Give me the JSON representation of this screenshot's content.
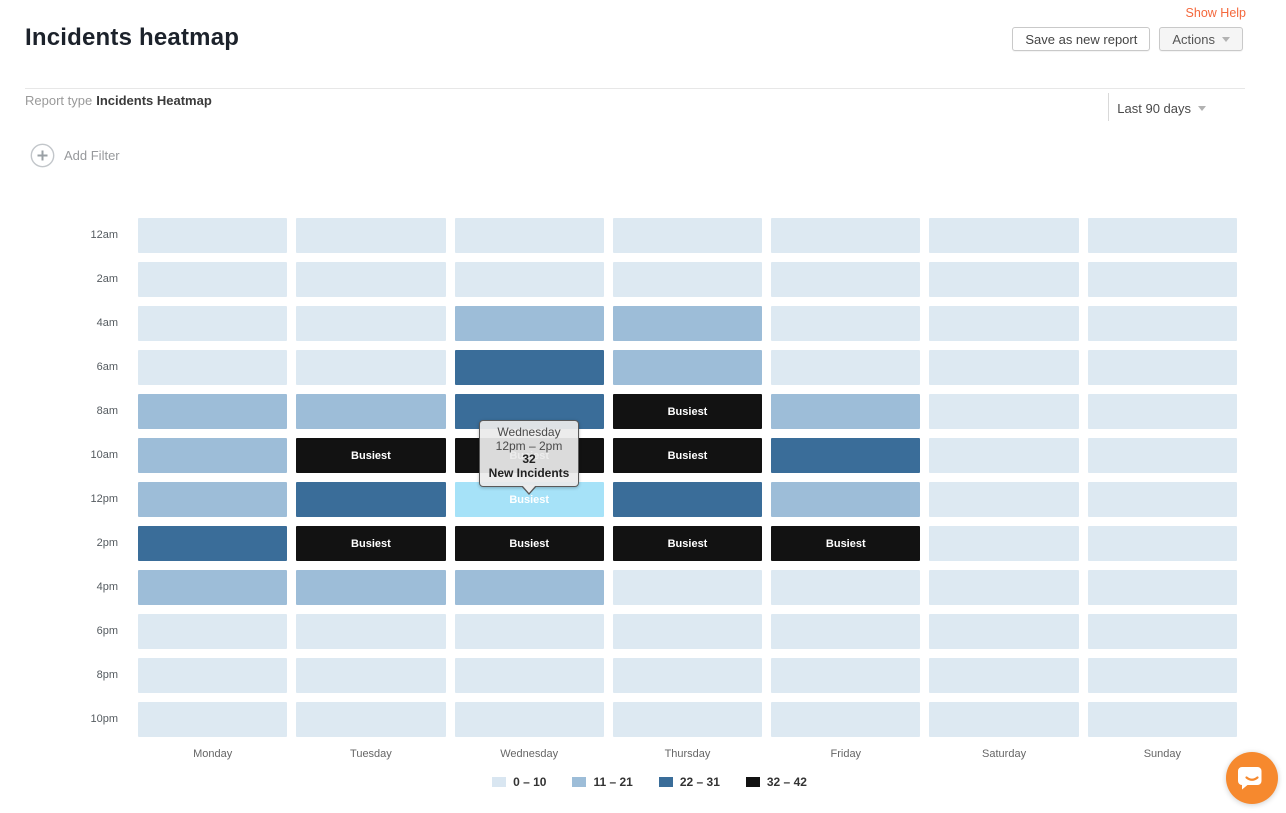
{
  "header": {
    "title": "Incidents heatmap",
    "show_help": "Show Help",
    "save_button": "Save as new report",
    "actions_button": "Actions"
  },
  "report_bar": {
    "type_label": "Report type",
    "type_value": "Incidents Heatmap",
    "date_range": "Last 90 days"
  },
  "filters": {
    "add_filter_label": "Add Filter"
  },
  "tooltip": {
    "day": "Wednesday",
    "time_range": "12pm – 2pm",
    "value": "32",
    "label": "New Incidents"
  },
  "heatmap": {
    "busiest_label": "Busiest",
    "times": [
      "12am",
      "2am",
      "4am",
      "6am",
      "8am",
      "10am",
      "12pm",
      "2pm",
      "4pm",
      "6pm",
      "8pm",
      "10pm"
    ],
    "days": [
      "Monday",
      "Tuesday",
      "Wednesday",
      "Thursday",
      "Friday",
      "Saturday",
      "Sunday"
    ],
    "levels": [
      [
        0,
        0,
        0,
        0,
        0,
        0,
        0
      ],
      [
        0,
        0,
        0,
        0,
        0,
        0,
        0
      ],
      [
        0,
        0,
        1,
        1,
        0,
        0,
        0
      ],
      [
        0,
        0,
        2,
        1,
        0,
        0,
        0
      ],
      [
        1,
        1,
        2,
        3,
        1,
        0,
        0
      ],
      [
        1,
        3,
        3,
        3,
        2,
        0,
        0
      ],
      [
        1,
        2,
        3,
        2,
        1,
        0,
        0
      ],
      [
        2,
        3,
        3,
        3,
        3,
        0,
        0
      ],
      [
        1,
        1,
        1,
        0,
        0,
        0,
        0
      ],
      [
        0,
        0,
        0,
        0,
        0,
        0,
        0
      ],
      [
        0,
        0,
        0,
        0,
        0,
        0,
        0
      ],
      [
        0,
        0,
        0,
        0,
        0,
        0,
        0
      ]
    ],
    "hover_cell": {
      "row": 6,
      "col": 2
    },
    "colors": {
      "level_0": "#dde9f2",
      "level_1": "#9dbdd8",
      "level_2": "#3a6d99",
      "level_3": "#121212",
      "hover": "#a6e2f8"
    }
  },
  "legend": {
    "items": [
      {
        "label": "0 – 10",
        "color": "#d9e6f1"
      },
      {
        "label": "11 – 21",
        "color": "#9dbdd8"
      },
      {
        "label": "22 – 31",
        "color": "#3a6d99"
      },
      {
        "label": "32 – 42",
        "color": "#121212"
      }
    ]
  },
  "colors": {
    "help_link": "#f4683c",
    "chat_bubble": "#f6892e"
  },
  "chart_data": {
    "type": "heatmap",
    "title": "Incidents heatmap",
    "x": [
      "Monday",
      "Tuesday",
      "Wednesday",
      "Thursday",
      "Friday",
      "Saturday",
      "Sunday"
    ],
    "y": [
      "12am",
      "2am",
      "4am",
      "6am",
      "8am",
      "10am",
      "12pm",
      "2pm",
      "4pm",
      "6pm",
      "8pm",
      "10pm"
    ],
    "buckets": [
      "0 – 10",
      "11 – 21",
      "22 – 31",
      "32 – 42"
    ],
    "bucket_colors": [
      "#dde9f2",
      "#9dbdd8",
      "#3a6d99",
      "#121212"
    ],
    "level_matrix_rows_by_time": [
      [
        0,
        0,
        0,
        0,
        0,
        0,
        0
      ],
      [
        0,
        0,
        0,
        0,
        0,
        0,
        0
      ],
      [
        0,
        0,
        1,
        1,
        0,
        0,
        0
      ],
      [
        0,
        0,
        2,
        1,
        0,
        0,
        0
      ],
      [
        1,
        1,
        2,
        3,
        1,
        0,
        0
      ],
      [
        1,
        3,
        3,
        3,
        2,
        0,
        0
      ],
      [
        1,
        2,
        3,
        2,
        1,
        0,
        0
      ],
      [
        2,
        3,
        3,
        3,
        3,
        0,
        0
      ],
      [
        1,
        1,
        1,
        0,
        0,
        0,
        0
      ],
      [
        0,
        0,
        0,
        0,
        0,
        0,
        0
      ],
      [
        0,
        0,
        0,
        0,
        0,
        0,
        0
      ],
      [
        0,
        0,
        0,
        0,
        0,
        0,
        0
      ]
    ],
    "busiest_cells": [
      {
        "day": "Thursday",
        "time": "8am"
      },
      {
        "day": "Tuesday",
        "time": "10am"
      },
      {
        "day": "Wednesday",
        "time": "10am"
      },
      {
        "day": "Thursday",
        "time": "10am"
      },
      {
        "day": "Wednesday",
        "time": "12pm"
      },
      {
        "day": "Tuesday",
        "time": "2pm"
      },
      {
        "day": "Wednesday",
        "time": "2pm"
      },
      {
        "day": "Thursday",
        "time": "2pm"
      },
      {
        "day": "Friday",
        "time": "2pm"
      }
    ],
    "highlighted_cell": {
      "day": "Wednesday",
      "time_range": "12pm – 2pm",
      "new_incidents": 32
    },
    "legend_position": "bottom"
  }
}
